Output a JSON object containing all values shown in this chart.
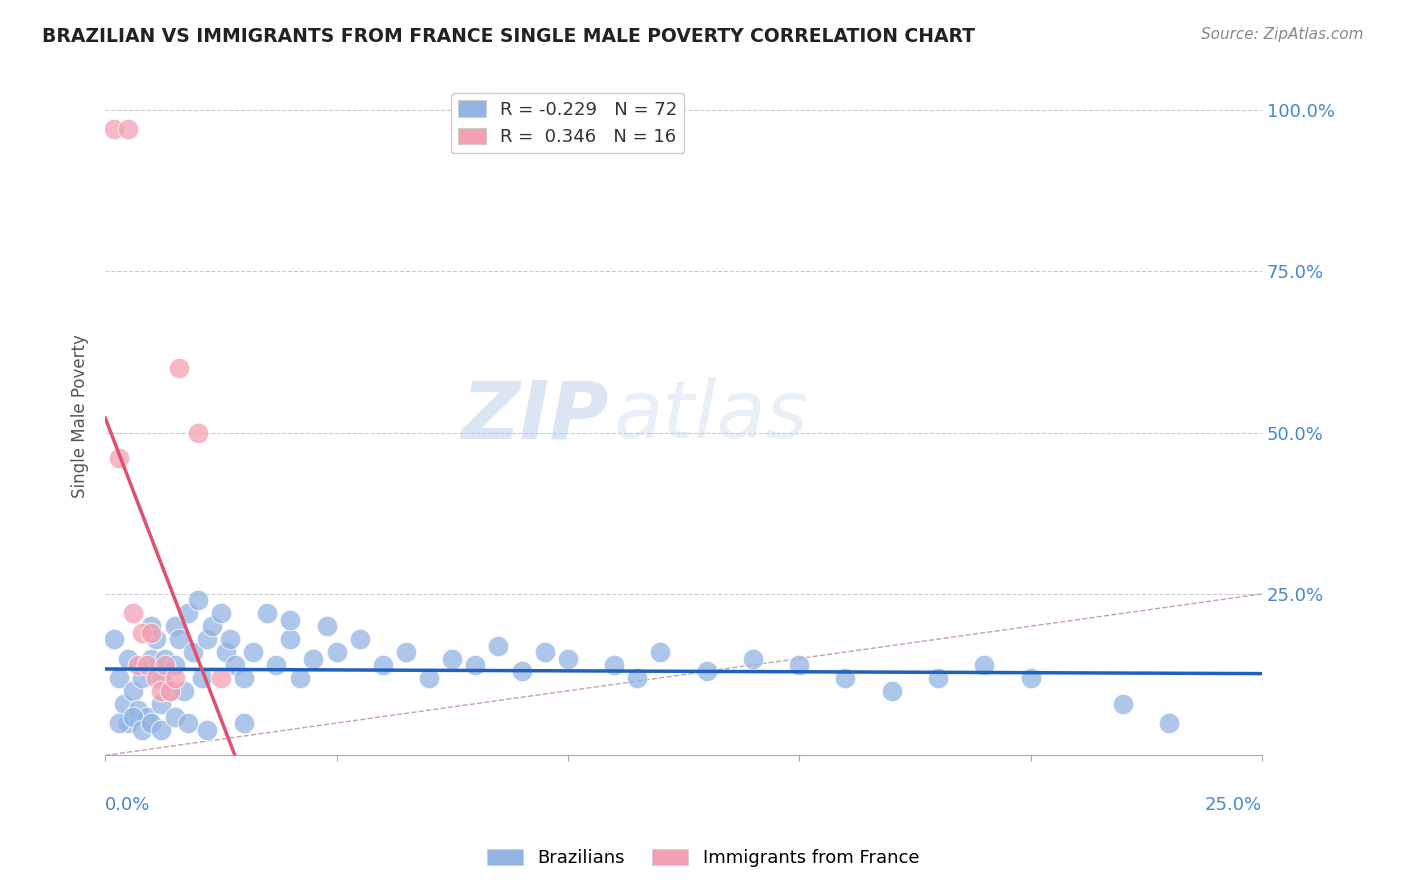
{
  "title": "BRAZILIAN VS IMMIGRANTS FROM FRANCE SINGLE MALE POVERTY CORRELATION CHART",
  "source": "Source: ZipAtlas.com",
  "ylabel": "Single Male Poverty",
  "xlim": [
    0.0,
    0.25
  ],
  "ylim": [
    0.0,
    1.05
  ],
  "legend_R_blue": "-0.229",
  "legend_N_blue": "72",
  "legend_R_pink": "0.346",
  "legend_N_pink": "16",
  "blue_color": "#92b4e3",
  "pink_color": "#f4a0b0",
  "blue_line_color": "#2060c0",
  "pink_line_color": "#e05070",
  "diagonal_color": "#c8a0a8",
  "watermark_zip": "ZIP",
  "watermark_atlas": "atlas",
  "blue_scatter_x": [
    0.002,
    0.003,
    0.004,
    0.005,
    0.005,
    0.006,
    0.007,
    0.008,
    0.009,
    0.01,
    0.01,
    0.011,
    0.012,
    0.012,
    0.013,
    0.014,
    0.015,
    0.015,
    0.016,
    0.017,
    0.018,
    0.019,
    0.02,
    0.021,
    0.022,
    0.023,
    0.025,
    0.026,
    0.027,
    0.028,
    0.03,
    0.032,
    0.035,
    0.037,
    0.04,
    0.042,
    0.045,
    0.048,
    0.05,
    0.055,
    0.06,
    0.065,
    0.07,
    0.075,
    0.08,
    0.085,
    0.09,
    0.095,
    0.1,
    0.11,
    0.115,
    0.12,
    0.13,
    0.14,
    0.15,
    0.16,
    0.17,
    0.18,
    0.19,
    0.2,
    0.003,
    0.006,
    0.008,
    0.01,
    0.012,
    0.015,
    0.018,
    0.022,
    0.03,
    0.04,
    0.22,
    0.23
  ],
  "blue_scatter_y": [
    0.18,
    0.12,
    0.08,
    0.05,
    0.15,
    0.1,
    0.07,
    0.12,
    0.06,
    0.15,
    0.2,
    0.18,
    0.12,
    0.08,
    0.15,
    0.1,
    0.2,
    0.14,
    0.18,
    0.1,
    0.22,
    0.16,
    0.24,
    0.12,
    0.18,
    0.2,
    0.22,
    0.16,
    0.18,
    0.14,
    0.12,
    0.16,
    0.22,
    0.14,
    0.18,
    0.12,
    0.15,
    0.2,
    0.16,
    0.18,
    0.14,
    0.16,
    0.12,
    0.15,
    0.14,
    0.17,
    0.13,
    0.16,
    0.15,
    0.14,
    0.12,
    0.16,
    0.13,
    0.15,
    0.14,
    0.12,
    0.1,
    0.12,
    0.14,
    0.12,
    0.05,
    0.06,
    0.04,
    0.05,
    0.04,
    0.06,
    0.05,
    0.04,
    0.05,
    0.21,
    0.08,
    0.05
  ],
  "pink_scatter_x": [
    0.002,
    0.003,
    0.005,
    0.006,
    0.007,
    0.008,
    0.009,
    0.01,
    0.011,
    0.012,
    0.013,
    0.014,
    0.015,
    0.016,
    0.02,
    0.025
  ],
  "pink_scatter_y": [
    0.97,
    0.46,
    0.97,
    0.22,
    0.14,
    0.19,
    0.14,
    0.19,
    0.12,
    0.1,
    0.14,
    0.1,
    0.12,
    0.6,
    0.5,
    0.12
  ]
}
